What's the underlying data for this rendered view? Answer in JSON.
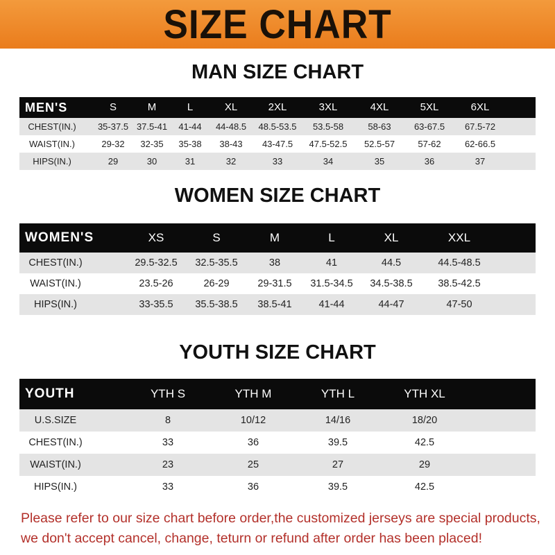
{
  "banner": {
    "title": "SIZE CHART",
    "color": "#ee8a2c"
  },
  "men": {
    "title": "MAN SIZE CHART",
    "header": [
      "MEN'S",
      "S",
      "M",
      "L",
      "XL",
      "2XL",
      "3XL",
      "4XL",
      "5XL",
      "6XL"
    ],
    "rows": [
      [
        "CHEST(IN.)",
        "35-37.5",
        "37.5-41",
        "41-44",
        "44-48.5",
        "48.5-53.5",
        "53.5-58",
        "58-63",
        "63-67.5",
        "67.5-72"
      ],
      [
        "WAIST(IN.)",
        "29-32",
        "32-35",
        "35-38",
        "38-43",
        "43-47.5",
        "47.5-52.5",
        "52.5-57",
        "57-62",
        "62-66.5"
      ],
      [
        "HIPS(IN.)",
        "29",
        "30",
        "31",
        "32",
        "33",
        "34",
        "35",
        "36",
        "37"
      ]
    ]
  },
  "women": {
    "title": "WOMEN SIZE CHART",
    "header": [
      "WOMEN'S",
      "XS",
      "S",
      "M",
      "L",
      "XL",
      "XXL"
    ],
    "rows": [
      [
        "CHEST(IN.)",
        "29.5-32.5",
        "32.5-35.5",
        "38",
        "41",
        "44.5",
        "44.5-48.5"
      ],
      [
        "WAIST(IN.)",
        "23.5-26",
        "26-29",
        "29-31.5",
        "31.5-34.5",
        "34.5-38.5",
        "38.5-42.5"
      ],
      [
        "HIPS(IN.)",
        "33-35.5",
        "35.5-38.5",
        "38.5-41",
        "41-44",
        "44-47",
        "47-50"
      ]
    ]
  },
  "youth": {
    "title": "YOUTH SIZE CHART",
    "header": [
      "YOUTH",
      "YTH S",
      "YTH M",
      "YTH L",
      "YTH XL"
    ],
    "rows": [
      [
        "U.S.SIZE",
        "8",
        "10/12",
        "14/16",
        "18/20"
      ],
      [
        "CHEST(IN.)",
        "33",
        "36",
        "39.5",
        "42.5"
      ],
      [
        "WAIST(IN.)",
        "23",
        "25",
        "27",
        "29"
      ],
      [
        "HIPS(IN.)",
        "33",
        "36",
        "39.5",
        "42.5"
      ]
    ]
  },
  "notice": {
    "line1": "Please refer to our size chart before order,the customized jerseys are special products,",
    "line2": "we don't accept cancel, change, teturn or refund after order has been placed!",
    "color": "#b3302a"
  }
}
